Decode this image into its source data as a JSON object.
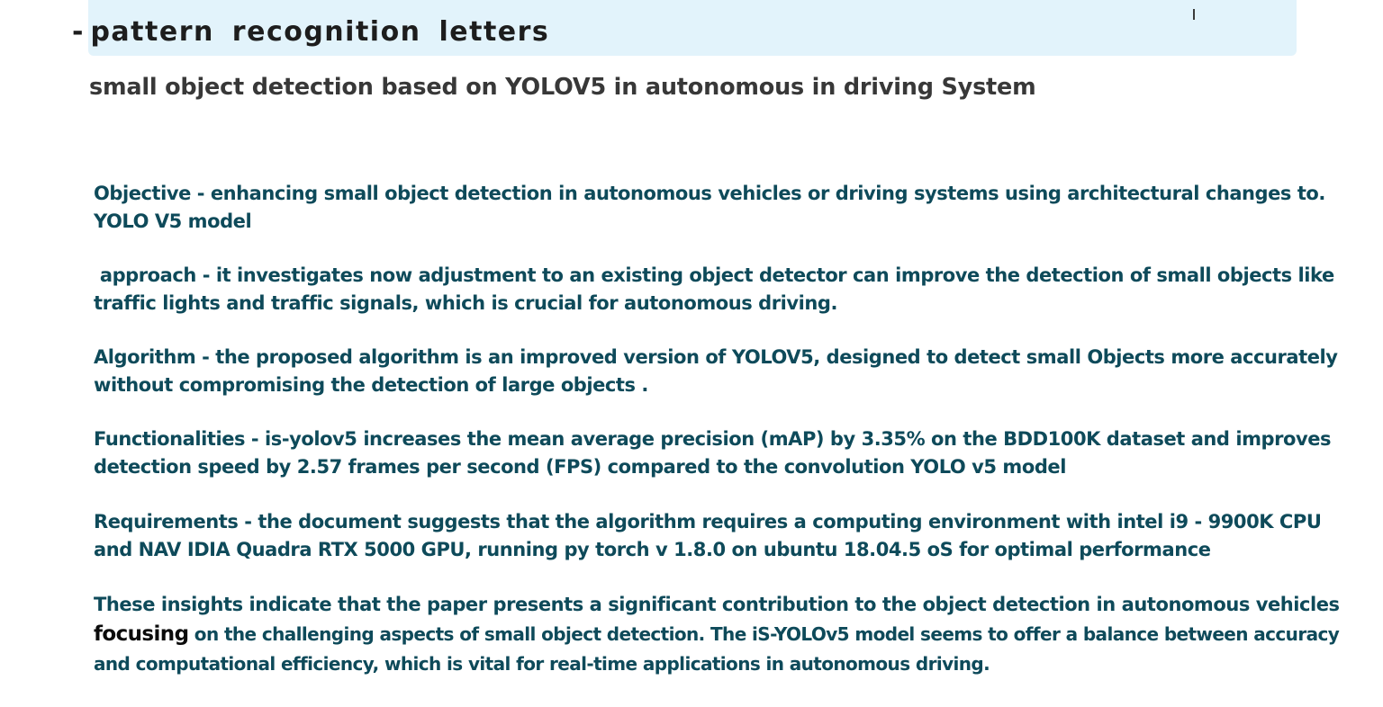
{
  "header": {
    "bullet": "-",
    "title": "pattern recognition letters"
  },
  "subtitle": "small object detection based on YOLOV5 in autonomous in driving System",
  "paragraphs": {
    "objective": {
      "line1": "Objective - enhancing small object detection in autonomous vehicles or driving systems using architectural changes to.",
      "line2": "YOLO V5 model"
    },
    "approach": {
      "line1": " approach - it investigates now adjustment to an existing object detector can improve the detection of small objects like",
      "line2": "traffic lights and traffic signals, which is crucial for autonomous driving."
    },
    "algorithm": {
      "line1": "Algorithm - the proposed algorithm is an improved version of YOLOV5, designed to detect small Objects more accurately",
      "line2": "without compromising the detection of large objects ."
    },
    "functionalities": {
      "line1": "Functionalities - is-yolov5 increases the mean average precision (mAP) by 3.35% on the BDD100K dataset and improves",
      "line2": "detection speed by 2.57 frames per second (FPS) compared to the convolution YOLO v5 model"
    },
    "requirements": {
      "line1": "Requirements - the document suggests that the algorithm requires a computing environment with intel i9 - 9900K CPU",
      "line2": "and NAV IDIA Quadra RTX 5000 GPU, running py torch v 1.8.0 on ubuntu 18.04.5 oS for optimal performance"
    },
    "insights": {
      "line1": "These insights indicate that the paper presents a significant contribution to the object detection in autonomous vehicles",
      "line2_lead": "focusing",
      "line2_rest": " on the challenging aspects of small object detection. The iS-YOLOv5 model seems to offer a balance between accuracy",
      "line3": "and computational efficiency, which is vital for real-time applications in autonomous driving."
    }
  },
  "colors": {
    "highlight": "#e2f3fb",
    "body_text": "#0e4a5a",
    "title_text": "#1d1d1d"
  }
}
